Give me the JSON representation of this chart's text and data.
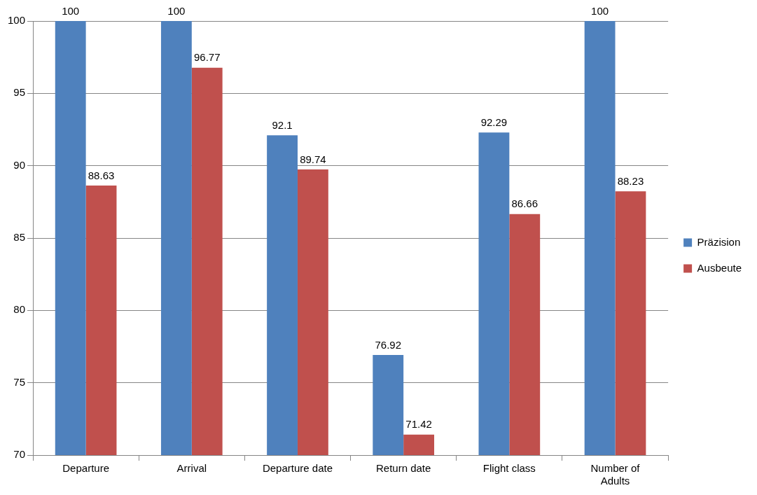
{
  "chart_data": {
    "type": "bar",
    "categories": [
      "Departure",
      "Arrival",
      "Departure date",
      "Return date",
      "Flight class",
      "Number of Adults"
    ],
    "series": [
      {
        "name": "Präzision",
        "color": "#4f81bd",
        "values": [
          100,
          100,
          92.1,
          76.92,
          92.29,
          100
        ]
      },
      {
        "name": "Ausbeute",
        "color": "#c0504d",
        "values": [
          88.63,
          96.77,
          89.74,
          71.42,
          86.66,
          88.23
        ]
      }
    ],
    "ylim": [
      70,
      100
    ],
    "yticks": [
      70,
      75,
      80,
      85,
      90,
      95,
      100
    ],
    "grid": "y",
    "legend": "right",
    "data_labels": true
  }
}
